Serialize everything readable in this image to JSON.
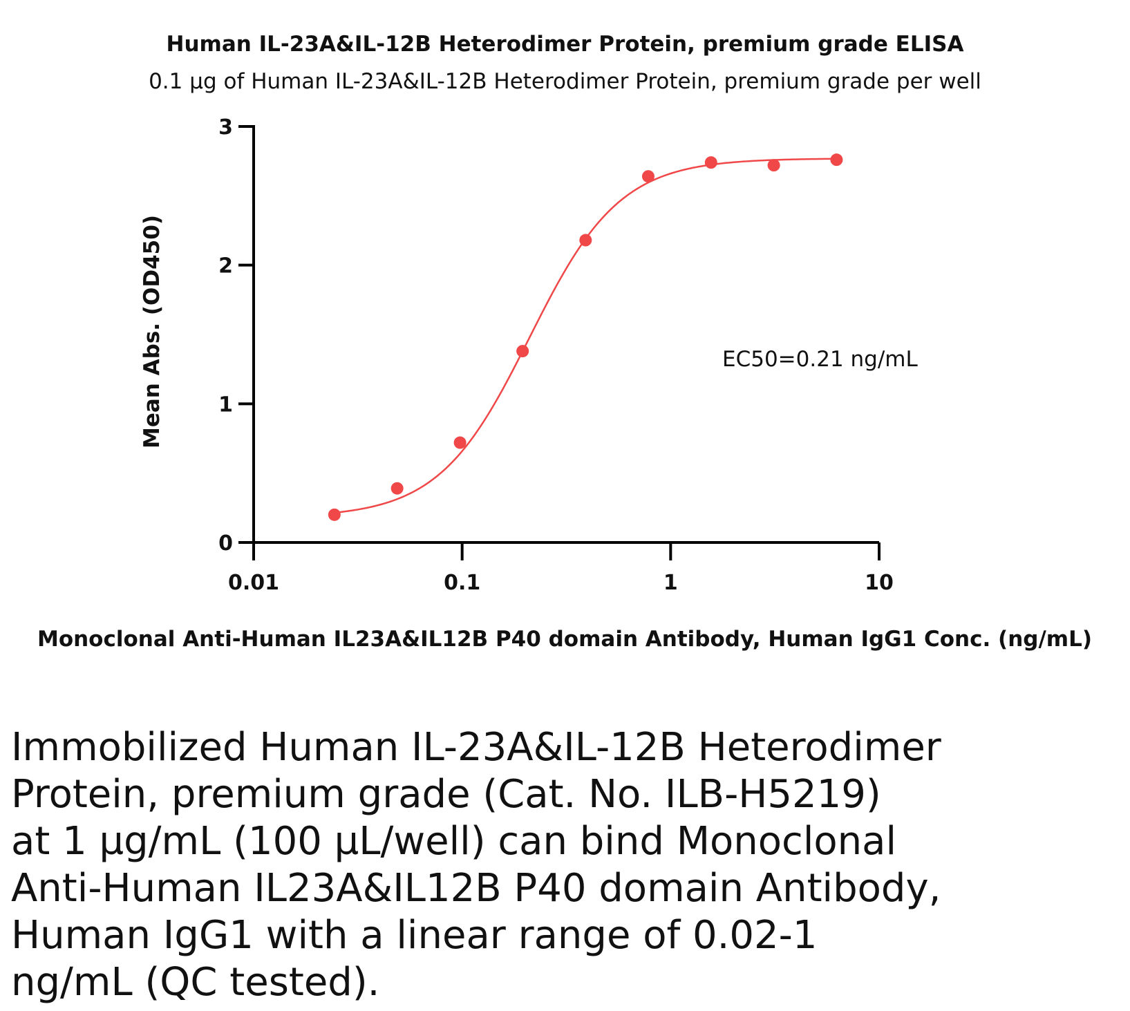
{
  "colors": {
    "series": "#f04848",
    "axis": "#000000"
  },
  "chart_data": {
    "type": "scatter",
    "title": "Human IL-23A&IL-12B Heterodimer Protein, premium grade ELISA",
    "subtitle": "0.1 µg of Human IL-23A&IL-12B Heterodimer Protein, premium grade per well",
    "xlabel": "Monoclonal Anti-Human IL23A&IL12B P40 domain Antibody, Human IgG1 Conc. (ng/mL)",
    "ylabel": "Mean Abs. (OD450)",
    "x_scale": "log",
    "xlim": [
      0.01,
      10
    ],
    "ylim": [
      0,
      3
    ],
    "x_ticks": [
      {
        "value": 0.01,
        "label": "0.01"
      },
      {
        "value": 0.1,
        "label": "0.1"
      },
      {
        "value": 1,
        "label": "1"
      },
      {
        "value": 10,
        "label": "10"
      }
    ],
    "y_ticks": [
      {
        "value": 0,
        "label": "0"
      },
      {
        "value": 1,
        "label": "1"
      },
      {
        "value": 2,
        "label": "2"
      },
      {
        "value": 3,
        "label": "3"
      }
    ],
    "x": [
      0.0244,
      0.0488,
      0.0977,
      0.195,
      0.391,
      0.781,
      1.5625,
      3.125,
      6.25
    ],
    "y": [
      0.2,
      0.39,
      0.72,
      1.38,
      2.18,
      2.64,
      2.74,
      2.72,
      2.76
    ],
    "fit": {
      "model": "4PL",
      "bottom": 0.18,
      "top": 2.77,
      "ec50": 0.21,
      "hill": 2.0
    },
    "annotation": "EC50=0.21 ng/mL",
    "grid": false,
    "legend": "none"
  },
  "caption_lines": [
    "Immobilized Human IL-23A&IL-12B Heterodimer",
    "Protein, premium grade (Cat. No. ILB-H5219)",
    "at 1 µg/mL (100 µL/well) can bind Monoclonal",
    "Anti-Human IL23A&IL12B P40 domain Antibody,",
    "Human IgG1 with a linear range of 0.02-1",
    "ng/mL (QC tested)."
  ]
}
